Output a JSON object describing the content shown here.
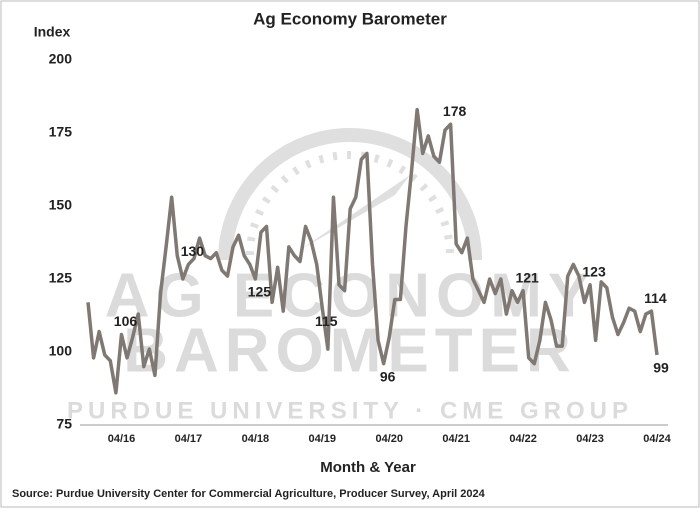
{
  "chart_data": {
    "type": "line",
    "title": "Ag Economy Barometer",
    "y_label": "Index",
    "x_label": "Month & Year",
    "source": "Source: Purdue University Center for Commercial Agriculture, Producer Survey, April 2024",
    "watermark": [
      "AG ECONOMY",
      "BAROMETER",
      "PURDUE UNIVERSITY · CME GROUP"
    ],
    "categories": [
      null,
      null,
      null,
      null,
      null,
      null,
      "04/16",
      null,
      null,
      null,
      null,
      null,
      null,
      null,
      null,
      null,
      null,
      null,
      "04/17",
      null,
      null,
      null,
      null,
      null,
      null,
      null,
      null,
      null,
      null,
      null,
      "04/18",
      null,
      null,
      null,
      null,
      null,
      null,
      null,
      null,
      null,
      null,
      null,
      "04/19",
      null,
      null,
      null,
      null,
      null,
      null,
      null,
      null,
      null,
      null,
      null,
      "04/20",
      null,
      null,
      null,
      null,
      null,
      null,
      null,
      null,
      null,
      null,
      null,
      "04/21",
      null,
      null,
      null,
      null,
      null,
      null,
      null,
      null,
      null,
      null,
      null,
      "04/22",
      null,
      null,
      null,
      null,
      null,
      null,
      null,
      null,
      null,
      null,
      null,
      "04/23",
      null,
      null,
      null,
      null,
      null,
      null,
      null,
      null,
      null,
      null,
      null,
      "04/24"
    ],
    "series": [
      {
        "color": "#7f7873",
        "values": [
          117,
          98,
          107,
          99,
          97,
          86,
          106,
          98,
          105,
          113,
          95,
          101,
          92,
          120,
          136,
          153,
          133,
          125,
          130,
          132,
          139,
          133,
          132,
          134,
          128,
          126,
          136,
          140,
          133,
          130,
          125,
          141,
          143,
          117,
          129,
          114,
          136,
          133,
          131,
          143,
          138,
          130,
          115,
          101,
          153,
          123,
          121,
          149,
          153,
          166,
          168,
          130,
          104,
          96,
          105,
          118,
          118,
          143,
          162,
          183,
          168,
          174,
          167,
          165,
          176,
          178,
          137,
          134,
          139,
          125,
          121,
          117,
          125,
          120,
          125,
          113,
          121,
          117,
          121,
          98,
          96,
          104,
          117,
          111,
          102,
          102,
          126,
          130,
          126,
          117,
          123,
          104,
          124,
          122,
          112,
          106,
          110,
          115,
          114,
          107,
          113,
          114,
          99
        ]
      }
    ],
    "labeled_points": [
      6,
      18,
      30,
      42,
      53,
      65,
      78,
      90,
      101,
      102
    ],
    "ylim": [
      75,
      200
    ],
    "yticks": [
      75,
      100,
      125,
      150,
      175,
      200
    ],
    "grid": false
  }
}
